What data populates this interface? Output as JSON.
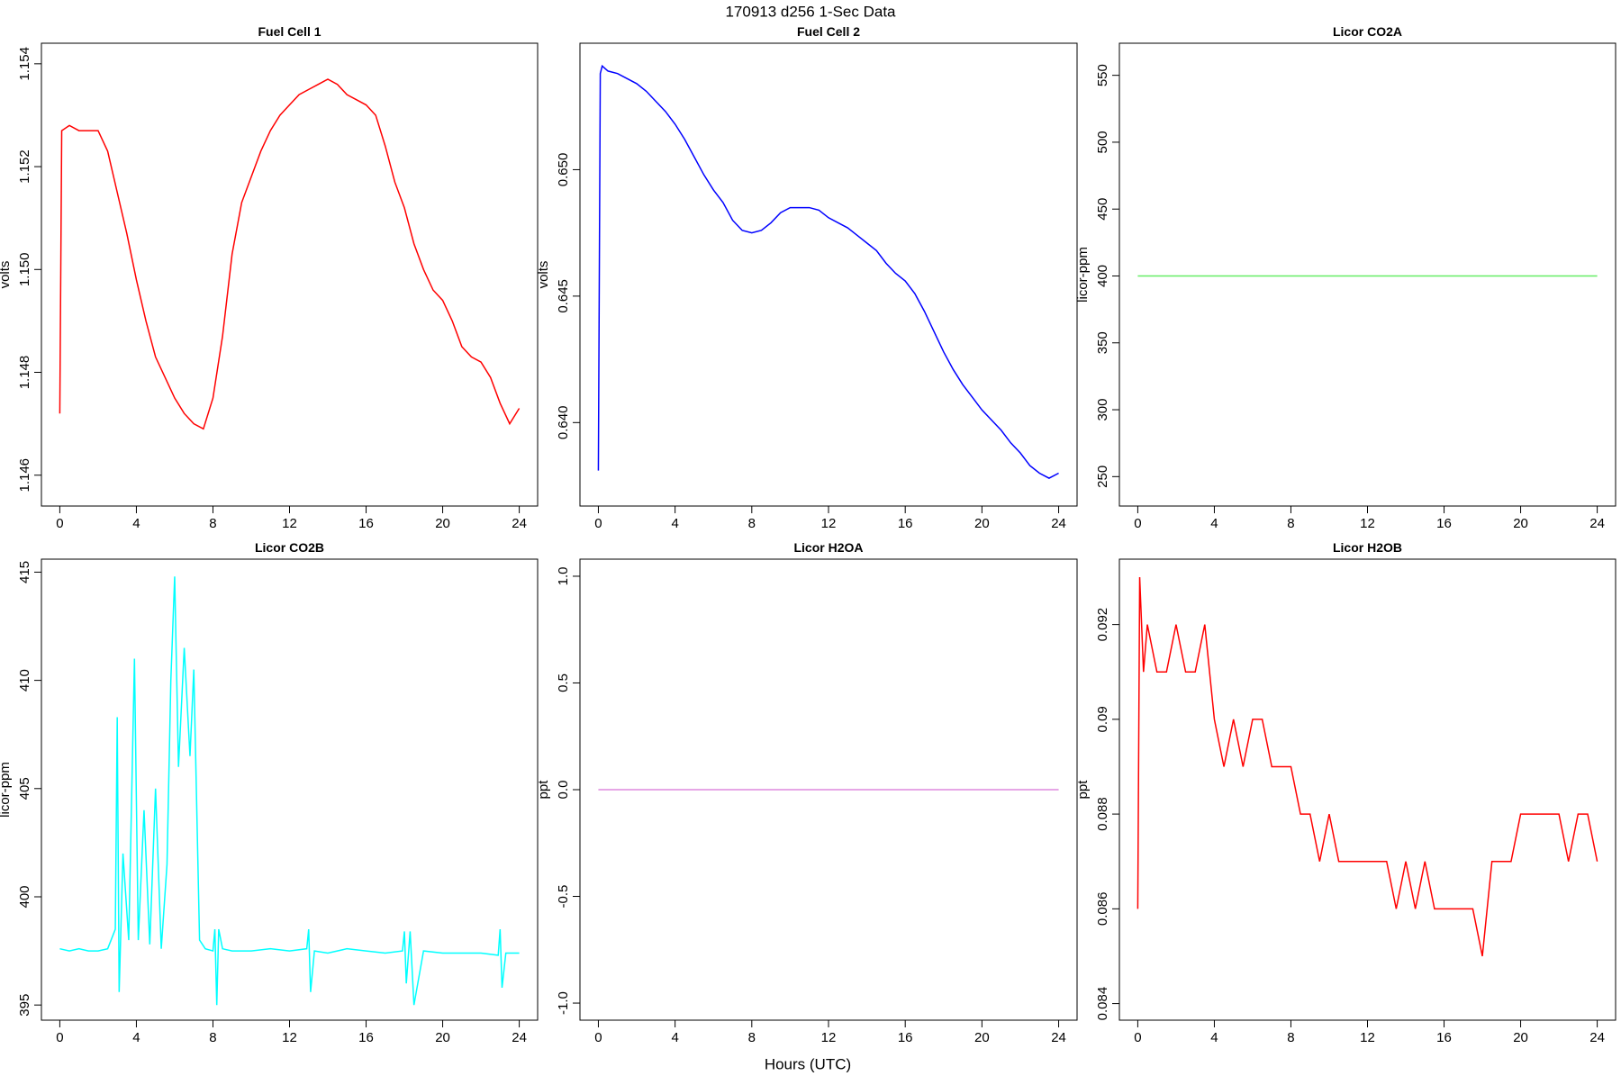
{
  "title": "170913   d256   1-Sec Data",
  "x_label": "Hours (UTC)",
  "chart_data": [
    {
      "type": "line",
      "title": "Fuel Cell 1",
      "y_label": "volts",
      "color": "#ff0000",
      "x": [
        0,
        0.1,
        0.5,
        1,
        1.5,
        2,
        2.5,
        3,
        3.5,
        4,
        4.5,
        5,
        5.5,
        6,
        6.5,
        7,
        7.5,
        8,
        8.5,
        9,
        9.5,
        10,
        10.5,
        11,
        11.5,
        12,
        12.5,
        13,
        13.5,
        14,
        14.5,
        15,
        15.5,
        16,
        16.5,
        17,
        17.5,
        18,
        18.5,
        19,
        19.5,
        20,
        20.5,
        21,
        21.5,
        22,
        22.5,
        23,
        23.5,
        24
      ],
      "values": [
        1.1472,
        1.1527,
        1.1528,
        1.1527,
        1.1527,
        1.1527,
        1.1523,
        1.1515,
        1.1507,
        1.1498,
        1.149,
        1.1483,
        1.1479,
        1.1475,
        1.1472,
        1.147,
        1.1469,
        1.1475,
        1.1487,
        1.1503,
        1.1513,
        1.1518,
        1.1523,
        1.1527,
        1.153,
        1.1532,
        1.1534,
        1.1535,
        1.1536,
        1.1537,
        1.1536,
        1.1534,
        1.1533,
        1.1532,
        1.153,
        1.1524,
        1.1517,
        1.1512,
        1.1505,
        1.15,
        1.1496,
        1.1494,
        1.149,
        1.1485,
        1.1483,
        1.1482,
        1.1479,
        1.1474,
        1.147,
        1.1473
      ],
      "xlim": [
        -0.96,
        24.96
      ],
      "xticks": [
        0,
        4,
        8,
        12,
        16,
        20,
        24
      ],
      "ylim": [
        1.1454,
        1.1544
      ],
      "yticks": [
        1.146,
        1.148,
        {
          "value": 1.15,
          "label": "1.150"
        },
        1.152,
        1.154
      ]
    },
    {
      "type": "line",
      "title": "Fuel Cell 2",
      "y_label": "volts",
      "color": "#0000ff",
      "x": [
        0,
        0.1,
        0.2,
        0.5,
        1,
        1.5,
        2,
        2.5,
        3,
        3.5,
        4,
        4.5,
        5,
        5.5,
        6,
        6.5,
        7,
        7.5,
        8,
        8.5,
        9,
        9.5,
        10,
        10.5,
        11,
        11.5,
        12,
        12.5,
        13,
        13.5,
        14,
        14.5,
        15,
        15.5,
        16,
        16.5,
        17,
        17.5,
        18,
        18.5,
        19,
        19.5,
        20,
        20.5,
        21,
        21.5,
        22,
        22.5,
        23,
        23.5,
        24
      ],
      "values": [
        0.6381,
        0.6538,
        0.6541,
        0.6539,
        0.6538,
        0.6536,
        0.6534,
        0.6531,
        0.6527,
        0.6523,
        0.6518,
        0.6512,
        0.6505,
        0.6498,
        0.6492,
        0.6487,
        0.648,
        0.6476,
        0.6475,
        0.6476,
        0.6479,
        0.6483,
        0.6485,
        0.6485,
        0.6485,
        0.6484,
        0.6481,
        0.6479,
        0.6477,
        0.6474,
        0.6471,
        0.6468,
        0.6463,
        0.6459,
        0.6456,
        0.6451,
        0.6444,
        0.6436,
        0.6428,
        0.6421,
        0.6415,
        0.641,
        0.6405,
        0.6401,
        0.6397,
        0.6392,
        0.6388,
        0.6383,
        0.638,
        0.6378,
        0.638
      ],
      "xlim": [
        -0.96,
        24.96
      ],
      "xticks": [
        0,
        4,
        8,
        12,
        16,
        20,
        24
      ],
      "ylim": [
        0.6367,
        0.655
      ],
      "yticks": [
        {
          "value": 0.64,
          "label": "0.640"
        },
        0.645,
        {
          "value": 0.65,
          "label": "0.650"
        }
      ]
    },
    {
      "type": "line",
      "title": "Licor CO2A",
      "y_label": "licor-ppm",
      "color": "#66ee66",
      "x": [
        0,
        24
      ],
      "values": [
        400,
        400
      ],
      "xlim": [
        -0.96,
        24.96
      ],
      "xticks": [
        0,
        4,
        8,
        12,
        16,
        20,
        24
      ],
      "ylim": [
        228,
        574
      ],
      "yticks": [
        250,
        300,
        350,
        400,
        450,
        500,
        550
      ]
    },
    {
      "type": "line",
      "title": "Licor CO2B",
      "y_label": "licor-ppm",
      "color": "#00ffff",
      "x": [
        0,
        0.5,
        1,
        1.5,
        2,
        2.5,
        2.9,
        3.0,
        3.1,
        3.3,
        3.6,
        3.9,
        4.1,
        4.4,
        4.7,
        5.0,
        5.3,
        5.6,
        5.8,
        6.0,
        6.2,
        6.5,
        6.8,
        7.0,
        7.3,
        7.6,
        8,
        8.1,
        8.2,
        8.3,
        8.5,
        9,
        10,
        11,
        12,
        12.9,
        13.0,
        13.1,
        13.3,
        14,
        15,
        16,
        17,
        17.9,
        18.0,
        18.1,
        18.3,
        18.5,
        19,
        20,
        21,
        22,
        22.9,
        23.0,
        23.1,
        23.3,
        24
      ],
      "values": [
        397.6,
        397.5,
        397.6,
        397.5,
        397.5,
        397.6,
        398.5,
        408.3,
        395.6,
        402,
        398,
        411,
        398,
        404,
        397.8,
        405,
        397.6,
        401.5,
        410,
        414.8,
        406,
        411.5,
        406.5,
        410.5,
        398,
        397.6,
        397.5,
        398.5,
        395,
        398.5,
        397.6,
        397.5,
        397.5,
        397.6,
        397.5,
        397.6,
        398.5,
        395.6,
        397.5,
        397.4,
        397.6,
        397.5,
        397.4,
        397.5,
        398.4,
        396,
        398.4,
        395,
        397.5,
        397.4,
        397.4,
        397.4,
        397.3,
        398.5,
        395.8,
        397.4,
        397.4
      ],
      "xlim": [
        -0.96,
        24.96
      ],
      "xticks": [
        0,
        4,
        8,
        12,
        16,
        20,
        24
      ],
      "ylim": [
        394.3,
        415.6
      ],
      "yticks": [
        395,
        400,
        405,
        410,
        415
      ]
    },
    {
      "type": "line",
      "title": "Licor H2OA",
      "y_label": "ppt",
      "color": "#dd88dd",
      "x": [
        0,
        24
      ],
      "values": [
        0,
        0
      ],
      "xlim": [
        -0.96,
        24.96
      ],
      "xticks": [
        0,
        4,
        8,
        12,
        16,
        20,
        24
      ],
      "ylim": [
        -1.08,
        1.08
      ],
      "yticks": [
        {
          "value": -1,
          "label": "-1.0"
        },
        -0.5,
        {
          "value": 0,
          "label": "0.0"
        },
        0.5,
        {
          "value": 1,
          "label": "1.0"
        }
      ]
    },
    {
      "type": "line",
      "title": "Licor H2OB",
      "y_label": "ppt",
      "color": "#ff0000",
      "x": [
        0,
        0.1,
        0.3,
        0.5,
        1,
        1.5,
        2,
        2.5,
        3,
        3.5,
        4,
        4.5,
        5,
        5.5,
        6,
        6.5,
        7,
        7.5,
        8,
        8.5,
        9,
        9.5,
        10,
        10.5,
        11,
        11.5,
        12,
        12.5,
        13,
        13.5,
        14,
        14.5,
        15,
        15.5,
        16,
        16.5,
        17,
        17.5,
        18,
        18.5,
        19,
        19.5,
        20,
        20.5,
        21,
        21.5,
        22,
        22.5,
        23,
        23.5,
        24
      ],
      "values": [
        0.086,
        0.093,
        0.091,
        0.092,
        0.091,
        0.091,
        0.092,
        0.091,
        0.091,
        0.092,
        0.09,
        0.089,
        0.09,
        0.089,
        0.09,
        0.09,
        0.089,
        0.089,
        0.089,
        0.088,
        0.088,
        0.087,
        0.088,
        0.087,
        0.087,
        0.087,
        0.087,
        0.087,
        0.087,
        0.086,
        0.087,
        0.086,
        0.087,
        0.086,
        0.086,
        0.086,
        0.086,
        0.086,
        0.085,
        0.087,
        0.087,
        0.087,
        0.088,
        0.088,
        0.088,
        0.088,
        0.088,
        0.087,
        0.088,
        0.088,
        0.087
      ],
      "xlim": [
        -0.96,
        24.96
      ],
      "xticks": [
        0,
        4,
        8,
        12,
        16,
        20,
        24
      ],
      "ylim": [
        0.08365,
        0.09338
      ],
      "yticks": [
        0.084,
        0.086,
        0.088,
        0.09,
        0.092
      ]
    }
  ]
}
